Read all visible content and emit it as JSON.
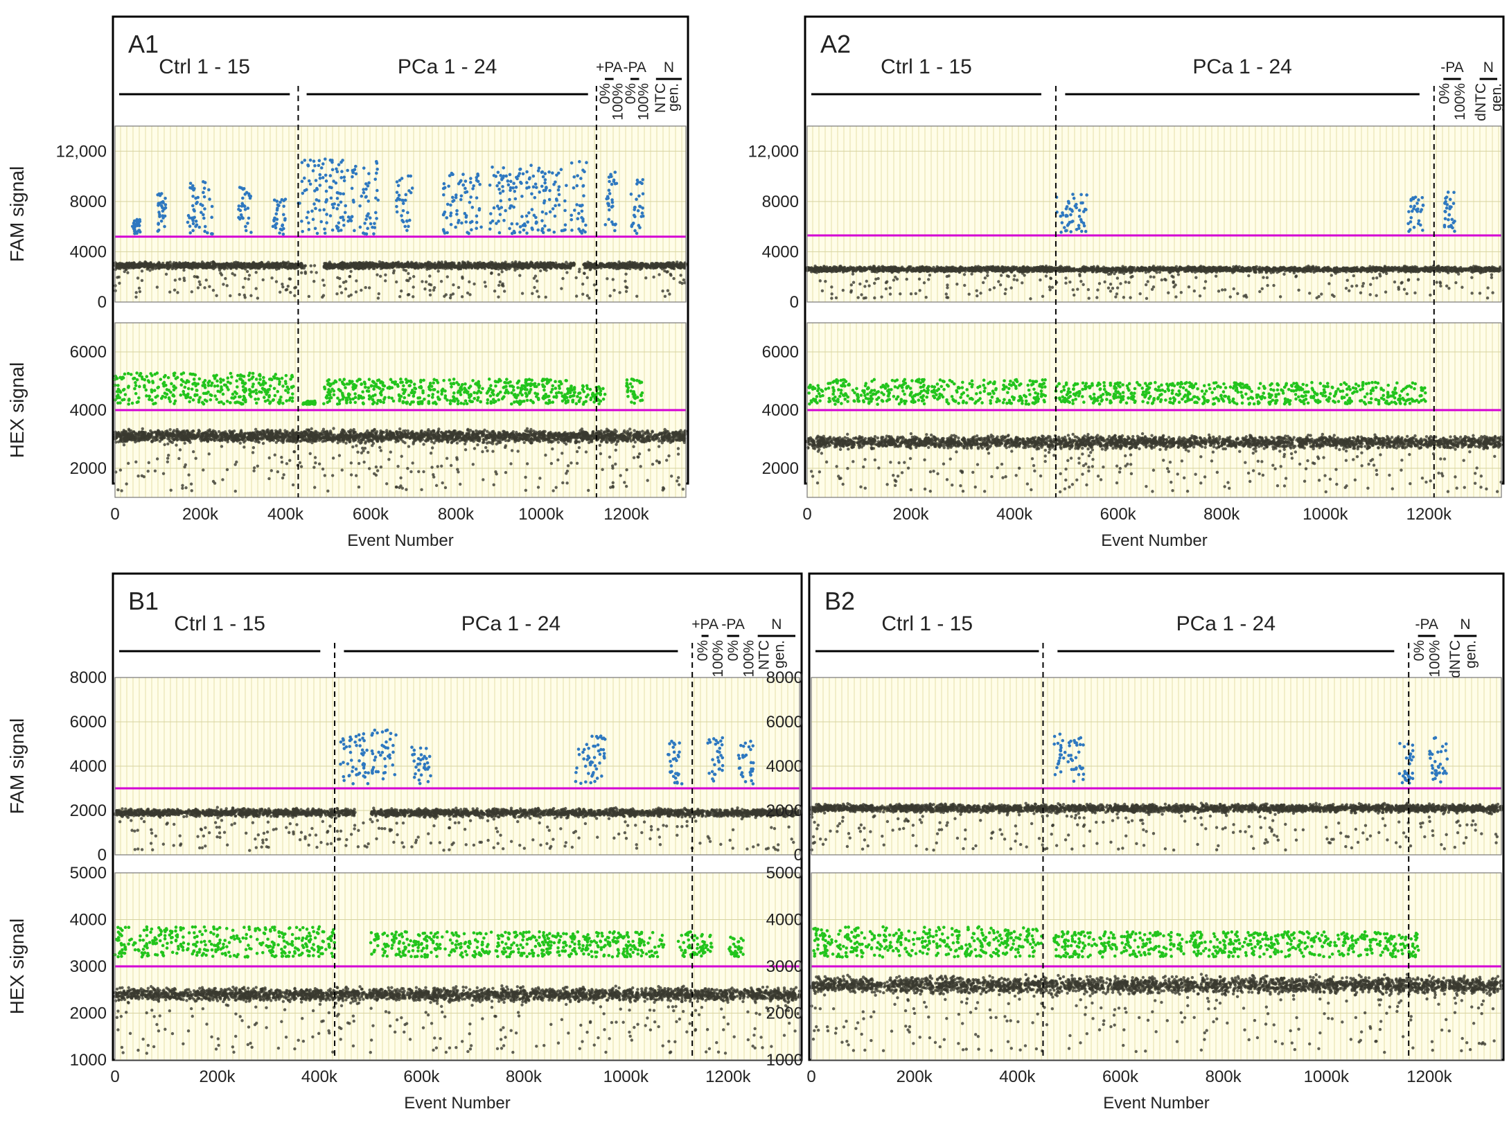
{
  "colors": {
    "positive_fam": "#2e78c0",
    "positive_hex": "#22c41c",
    "negative": "#3a3a30",
    "threshold": "#d400d4",
    "background": "#fffde8"
  },
  "panels": [
    {
      "id": "A1",
      "letter": "A1",
      "groups": [
        {
          "label": "Ctrl 1 - 15",
          "x0": 0,
          "x1": 420000
        },
        {
          "label": "PCa 1 - 24",
          "x0": 440000,
          "x1": 1120000
        },
        {
          "label": "+PA",
          "x0": 1140000,
          "x1": 1180000
        },
        {
          "label": "-PA",
          "x0": 1200000,
          "x1": 1240000
        },
        {
          "label": "N",
          "x0": 1260000,
          "x1": 1340000
        }
      ],
      "sublabels": [
        {
          "text": "0%",
          "x": 1150000
        },
        {
          "text": "100%",
          "x": 1180000
        },
        {
          "text": "0%",
          "x": 1210000
        },
        {
          "text": "100%",
          "x": 1240000
        },
        {
          "text": "NTC",
          "x": 1280000
        },
        {
          "text": "gen.",
          "x": 1310000
        }
      ],
      "dividers": [
        430000,
        1130000
      ],
      "x_range": [
        0,
        1340000
      ],
      "x_ticks": [
        "0",
        "200k",
        "400k",
        "600k",
        "800k",
        "1000k",
        "1200k"
      ],
      "x_label": "Event Number",
      "fam": {
        "y_label": "FAM signal",
        "y_range": [
          0,
          14000
        ],
        "y_ticks": [
          "0",
          "4000",
          "8000",
          "12,000"
        ],
        "threshold": 5200,
        "neg_level": 2900,
        "neg_spread": 350,
        "pos_blocks": [
          [
            40000,
            60000,
            6500
          ],
          [
            100000,
            120000,
            8500
          ],
          [
            170000,
            230000,
            9500
          ],
          [
            290000,
            320000,
            9000
          ],
          [
            370000,
            400000,
            8000
          ],
          [
            430000,
            620000,
            11000
          ],
          [
            660000,
            700000,
            10000
          ],
          [
            770000,
            860000,
            10000
          ],
          [
            880000,
            1060000,
            10500
          ],
          [
            1070000,
            1110000,
            11000
          ],
          [
            1150000,
            1180000,
            10000
          ],
          [
            1210000,
            1240000,
            9500
          ]
        ],
        "neg_gaps": [
          [
            440000,
            490000
          ],
          [
            1080000,
            1100000
          ]
        ]
      },
      "hex": {
        "y_label": "HEX signal",
        "y_range": [
          1000,
          7000
        ],
        "y_ticks": [
          "2000",
          "4000",
          "6000"
        ],
        "threshold": 4000,
        "neg_level": 3100,
        "neg_spread": 300,
        "pos_blocks": [
          [
            0,
            420000,
            5200
          ],
          [
            440000,
            470000,
            4300
          ],
          [
            490000,
            1060000,
            5000
          ],
          [
            1060000,
            1150000,
            4800
          ],
          [
            1200000,
            1240000,
            5000
          ]
        ],
        "neg_gaps": []
      }
    },
    {
      "id": "A2",
      "letter": "A2",
      "groups": [
        {
          "label": "Ctrl 1 - 15",
          "x0": 0,
          "x1": 460000
        },
        {
          "label": "PCa 1 - 24",
          "x0": 490000,
          "x1": 1190000
        },
        {
          "label": "-PA",
          "x0": 1220000,
          "x1": 1270000
        },
        {
          "label": "N",
          "x0": 1290000,
          "x1": 1340000
        }
      ],
      "sublabels": [
        {
          "text": "0%",
          "x": 1230000
        },
        {
          "text": "100%",
          "x": 1260000
        },
        {
          "text": "dNTC",
          "x": 1300000
        },
        {
          "text": "gen.",
          "x": 1330000
        }
      ],
      "dividers": [
        480000,
        1210000
      ],
      "x_range": [
        0,
        1340000
      ],
      "x_ticks": [
        "0",
        "200k",
        "400k",
        "600k",
        "800k",
        "1000k",
        "1200k"
      ],
      "x_label": "Event Number",
      "fam": {
        "y_label": "FAM signal",
        "y_range": [
          0,
          14000
        ],
        "y_ticks": [
          "0",
          "4000",
          "8000",
          "12,000"
        ],
        "threshold": 5300,
        "neg_level": 2600,
        "neg_spread": 300,
        "pos_blocks": [
          [
            480000,
            540000,
            8500
          ],
          [
            1160000,
            1190000,
            8200
          ],
          [
            1230000,
            1250000,
            8500
          ]
        ],
        "neg_gaps": []
      },
      "hex": {
        "y_label": "HEX signal",
        "y_range": [
          1000,
          7000
        ],
        "y_ticks": [
          "2000",
          "4000",
          "6000"
        ],
        "threshold": 4000,
        "neg_level": 2900,
        "neg_spread": 300,
        "pos_blocks": [
          [
            0,
            460000,
            5000
          ],
          [
            480000,
            1200000,
            4900
          ]
        ],
        "neg_gaps": []
      }
    },
    {
      "id": "B1",
      "letter": "B1",
      "groups": [
        {
          "label": "Ctrl 1 - 15",
          "x0": 0,
          "x1": 410000
        },
        {
          "label": "PCa 1 - 24",
          "x0": 440000,
          "x1": 1110000
        },
        {
          "label": "+PA",
          "x0": 1140000,
          "x1": 1170000
        },
        {
          "label": "-PA",
          "x0": 1190000,
          "x1": 1230000
        },
        {
          "label": "N",
          "x0": 1250000,
          "x1": 1340000
        }
      ],
      "sublabels": [
        {
          "text": "0%",
          "x": 1150000
        },
        {
          "text": "100%",
          "x": 1180000
        },
        {
          "text": "0%",
          "x": 1210000
        },
        {
          "text": "100%",
          "x": 1240000
        },
        {
          "text": "NTC",
          "x": 1270000
        },
        {
          "text": "gen.",
          "x": 1300000
        }
      ],
      "dividers": [
        430000,
        1130000
      ],
      "x_range": [
        0,
        1340000
      ],
      "x_ticks": [
        "0",
        "200k",
        "400k",
        "600k",
        "800k",
        "1000k",
        "1200k"
      ],
      "x_label": "Event Number",
      "fam": {
        "y_label": "FAM signal",
        "y_range": [
          0,
          8000
        ],
        "y_ticks": [
          "0",
          "2000",
          "4000",
          "6000",
          "8000"
        ],
        "threshold": 3000,
        "neg_level": 1900,
        "neg_spread": 250,
        "pos_blocks": [
          [
            440000,
            550000,
            5500
          ],
          [
            580000,
            620000,
            4800
          ],
          [
            900000,
            960000,
            5200
          ],
          [
            1080000,
            1110000,
            5000
          ],
          [
            1160000,
            1190000,
            5500
          ],
          [
            1220000,
            1250000,
            5000
          ]
        ],
        "neg_gaps": [
          [
            470000,
            500000
          ]
        ]
      },
      "hex": {
        "y_label": "HEX signal",
        "y_range": [
          1000,
          5000
        ],
        "y_ticks": [
          "1000",
          "2000",
          "3000",
          "4000",
          "5000"
        ],
        "threshold": 3000,
        "neg_level": 2400,
        "neg_spread": 200,
        "pos_blocks": [
          [
            0,
            430000,
            3800
          ],
          [
            500000,
            1080000,
            3700
          ],
          [
            1100000,
            1170000,
            3700
          ],
          [
            1200000,
            1230000,
            3600
          ]
        ],
        "neg_gaps": []
      }
    },
    {
      "id": "B2",
      "letter": "B2",
      "groups": [
        {
          "label": "Ctrl 1 - 15",
          "x0": 0,
          "x1": 450000
        },
        {
          "label": "PCa 1 - 24",
          "x0": 470000,
          "x1": 1140000
        },
        {
          "label": "-PA",
          "x0": 1170000,
          "x1": 1220000
        },
        {
          "label": "N",
          "x0": 1240000,
          "x1": 1300000
        }
      ],
      "sublabels": [
        {
          "text": "0%",
          "x": 1180000
        },
        {
          "text": "100%",
          "x": 1210000
        },
        {
          "text": "dNTC",
          "x": 1250000
        },
        {
          "text": "gen.",
          "x": 1280000
        }
      ],
      "dividers": [
        450000,
        1160000
      ],
      "x_range": [
        0,
        1340000
      ],
      "x_ticks": [
        "0",
        "200k",
        "400k",
        "600k",
        "800k",
        "1000k",
        "1200k"
      ],
      "x_label": "Event Number",
      "fam": {
        "y_label": "FAM signal",
        "y_range": [
          0,
          8000
        ],
        "y_ticks": [
          "0",
          "2000",
          "4000",
          "6000",
          "8000"
        ],
        "threshold": 3000,
        "neg_level": 2100,
        "neg_spread": 250,
        "pos_blocks": [
          [
            470000,
            530000,
            5300
          ],
          [
            1140000,
            1170000,
            5000
          ],
          [
            1200000,
            1240000,
            5200
          ]
        ],
        "neg_gaps": []
      },
      "hex": {
        "y_label": "HEX signal",
        "y_range": [
          1000,
          5000
        ],
        "y_ticks": [
          "1000",
          "2000",
          "3000",
          "4000",
          "5000"
        ],
        "threshold": 3000,
        "neg_level": 2600,
        "neg_spread": 250,
        "pos_blocks": [
          [
            0,
            450000,
            3800
          ],
          [
            470000,
            1180000,
            3700
          ]
        ],
        "neg_gaps": []
      }
    }
  ],
  "chart_data": [
    {
      "type": "scatter",
      "panel": "A1",
      "channel": "FAM",
      "ylabel": "FAM signal",
      "xlabel": "Event Number",
      "xlim": [
        0,
        1340000
      ],
      "ylim": [
        0,
        14000
      ],
      "threshold": 5200
    },
    {
      "type": "scatter",
      "panel": "A1",
      "channel": "HEX",
      "ylabel": "HEX signal",
      "xlabel": "Event Number",
      "xlim": [
        0,
        1340000
      ],
      "ylim": [
        1000,
        7000
      ],
      "threshold": 4000
    },
    {
      "type": "scatter",
      "panel": "A2",
      "channel": "FAM",
      "ylabel": "FAM signal",
      "xlabel": "Event Number",
      "xlim": [
        0,
        1340000
      ],
      "ylim": [
        0,
        14000
      ],
      "threshold": 5300
    },
    {
      "type": "scatter",
      "panel": "A2",
      "channel": "HEX",
      "ylabel": "HEX signal",
      "xlabel": "Event Number",
      "xlim": [
        0,
        1340000
      ],
      "ylim": [
        1000,
        7000
      ],
      "threshold": 4000
    },
    {
      "type": "scatter",
      "panel": "B1",
      "channel": "FAM",
      "ylabel": "FAM signal",
      "xlabel": "Event Number",
      "xlim": [
        0,
        1340000
      ],
      "ylim": [
        0,
        8000
      ],
      "threshold": 3000
    },
    {
      "type": "scatter",
      "panel": "B1",
      "channel": "HEX",
      "ylabel": "HEX signal",
      "xlabel": "Event Number",
      "xlim": [
        0,
        1340000
      ],
      "ylim": [
        1000,
        5000
      ],
      "threshold": 3000
    },
    {
      "type": "scatter",
      "panel": "B2",
      "channel": "FAM",
      "ylabel": "FAM signal",
      "xlabel": "Event Number",
      "xlim": [
        0,
        1340000
      ],
      "ylim": [
        0,
        8000
      ],
      "threshold": 3000
    },
    {
      "type": "scatter",
      "panel": "B2",
      "channel": "HEX",
      "ylabel": "HEX signal",
      "xlabel": "Event Number",
      "xlim": [
        0,
        1340000
      ],
      "ylim": [
        1000,
        5000
      ],
      "threshold": 3000
    }
  ]
}
